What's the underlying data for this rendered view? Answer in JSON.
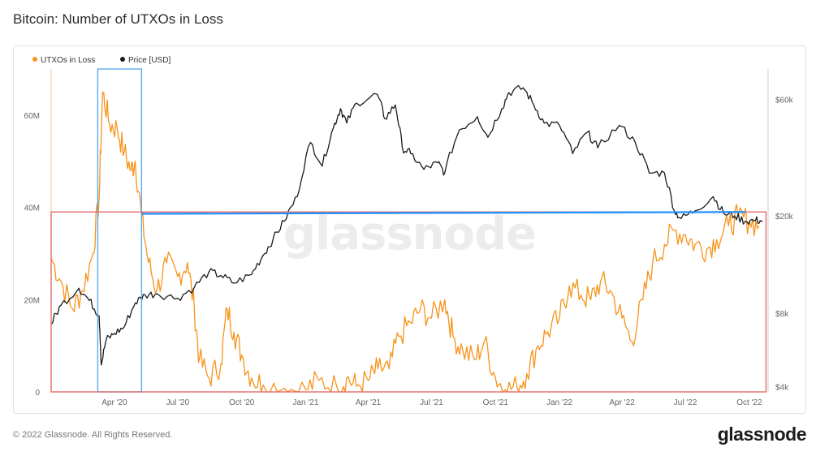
{
  "title": "Bitcoin: Number of UTXOs in Loss",
  "footer": "© 2022 Glassnode. All Rights Reserved.",
  "brand": "glassnode",
  "watermark": "glassnode",
  "colors": {
    "utxo": "#f7931a",
    "price": "#1a1a1a",
    "highlight_box": "#5aaaf0",
    "red_box": "#e36b6b",
    "trend_line": "#1e90ff"
  },
  "chart_data": {
    "type": "line",
    "legend": {
      "placement": "top-left",
      "entries": [
        "UTXOs in Loss",
        "Price [USD]"
      ]
    },
    "x_ticks": [
      "Apr '20",
      "Jul '20",
      "Oct '20",
      "Jan '21",
      "Apr '21",
      "Jul '21",
      "Oct '21",
      "Jan '22",
      "Apr '22",
      "Jul '22",
      "Oct '22"
    ],
    "left_axis": {
      "ticks": [
        "0",
        "20M",
        "40M",
        "60M"
      ],
      "tick_values": [
        0,
        20000000,
        40000000,
        60000000
      ],
      "range": [
        0,
        70000000
      ]
    },
    "right_axis": {
      "scale": "log",
      "ticks": [
        "$4k",
        "$8k",
        "$20k",
        "$60k"
      ],
      "tick_values": [
        4000,
        8000,
        20000,
        60000
      ],
      "range": [
        3800,
        80000
      ]
    },
    "series": [
      {
        "name": "UTXOs in Loss",
        "axis": "left",
        "points": [
          [
            "2020-01-01",
            29000000
          ],
          [
            "2020-01-15",
            24000000
          ],
          [
            "2020-02-01",
            18000000
          ],
          [
            "2020-02-15",
            22000000
          ],
          [
            "2020-03-01",
            30000000
          ],
          [
            "2020-03-10",
            42000000
          ],
          [
            "2020-03-15",
            65000000
          ],
          [
            "2020-03-25",
            58000000
          ],
          [
            "2020-04-05",
            57000000
          ],
          [
            "2020-04-15",
            52000000
          ],
          [
            "2020-04-25",
            48000000
          ],
          [
            "2020-05-01",
            50000000
          ],
          [
            "2020-05-10",
            38000000
          ],
          [
            "2020-05-20",
            28000000
          ],
          [
            "2020-06-01",
            22000000
          ],
          [
            "2020-06-15",
            28000000
          ],
          [
            "2020-07-01",
            25000000
          ],
          [
            "2020-07-15",
            28000000
          ],
          [
            "2020-07-25",
            18000000
          ],
          [
            "2020-08-01",
            7000000
          ],
          [
            "2020-08-15",
            3000000
          ],
          [
            "2020-09-01",
            6000000
          ],
          [
            "2020-09-10",
            18000000
          ],
          [
            "2020-09-20",
            13000000
          ],
          [
            "2020-10-01",
            8000000
          ],
          [
            "2020-10-15",
            3000000
          ],
          [
            "2020-11-01",
            1500000
          ],
          [
            "2020-12-01",
            800000
          ],
          [
            "2021-01-01",
            500000
          ],
          [
            "2021-01-20",
            2500000
          ],
          [
            "2021-02-15",
            1000000
          ],
          [
            "2021-03-01",
            3000000
          ],
          [
            "2021-03-15",
            1200000
          ],
          [
            "2021-04-01",
            2500000
          ],
          [
            "2021-04-15",
            5000000
          ],
          [
            "2021-05-01",
            5000000
          ],
          [
            "2021-05-15",
            12000000
          ],
          [
            "2021-06-01",
            15000000
          ],
          [
            "2021-06-15",
            18000000
          ],
          [
            "2021-07-01",
            16000000
          ],
          [
            "2021-07-20",
            20000000
          ],
          [
            "2021-08-01",
            12000000
          ],
          [
            "2021-08-15",
            9000000
          ],
          [
            "2021-09-01",
            7000000
          ],
          [
            "2021-09-15",
            11000000
          ],
          [
            "2021-10-01",
            3000000
          ],
          [
            "2021-10-15",
            500000
          ],
          [
            "2021-11-01",
            1000000
          ],
          [
            "2021-11-15",
            4000000
          ],
          [
            "2021-12-01",
            10000000
          ],
          [
            "2021-12-15",
            13000000
          ],
          [
            "2022-01-01",
            16000000
          ],
          [
            "2022-01-15",
            23000000
          ],
          [
            "2022-02-01",
            21000000
          ],
          [
            "2022-02-15",
            20000000
          ],
          [
            "2022-03-01",
            24000000
          ],
          [
            "2022-03-15",
            22000000
          ],
          [
            "2022-04-01",
            16000000
          ],
          [
            "2022-04-15",
            11000000
          ],
          [
            "2022-05-01",
            20000000
          ],
          [
            "2022-05-15",
            28000000
          ],
          [
            "2022-06-01",
            32000000
          ],
          [
            "2022-06-15",
            35000000
          ],
          [
            "2022-07-01",
            34000000
          ],
          [
            "2022-07-15",
            32000000
          ],
          [
            "2022-08-01",
            31000000
          ],
          [
            "2022-08-15",
            33000000
          ],
          [
            "2022-09-01",
            36000000
          ],
          [
            "2022-09-15",
            38000000
          ],
          [
            "2022-10-01",
            37000000
          ],
          [
            "2022-10-15",
            36000000
          ]
        ]
      },
      {
        "name": "Price [USD]",
        "axis": "right",
        "points": [
          [
            "2020-01-01",
            7200
          ],
          [
            "2020-01-15",
            8600
          ],
          [
            "2020-02-10",
            10100
          ],
          [
            "2020-02-25",
            9000
          ],
          [
            "2020-03-10",
            7800
          ],
          [
            "2020-03-13",
            4900
          ],
          [
            "2020-03-20",
            6200
          ],
          [
            "2020-04-01",
            6600
          ],
          [
            "2020-04-15",
            7000
          ],
          [
            "2020-05-01",
            8800
          ],
          [
            "2020-05-15",
            9500
          ],
          [
            "2020-06-01",
            9600
          ],
          [
            "2020-07-01",
            9200
          ],
          [
            "2020-07-25",
            10200
          ],
          [
            "2020-08-15",
            11800
          ],
          [
            "2020-09-01",
            11400
          ],
          [
            "2020-09-20",
            10600
          ],
          [
            "2020-10-15",
            11500
          ],
          [
            "2020-11-01",
            13800
          ],
          [
            "2020-11-15",
            16000
          ],
          [
            "2020-12-01",
            19000
          ],
          [
            "2020-12-20",
            24000
          ],
          [
            "2021-01-08",
            40000
          ],
          [
            "2021-01-25",
            32000
          ],
          [
            "2021-02-10",
            46000
          ],
          [
            "2021-02-20",
            55000
          ],
          [
            "2021-03-01",
            48000
          ],
          [
            "2021-03-15",
            58000
          ],
          [
            "2021-04-14",
            63000
          ],
          [
            "2021-04-25",
            50000
          ],
          [
            "2021-05-10",
            57000
          ],
          [
            "2021-05-20",
            38000
          ],
          [
            "2021-06-01",
            36000
          ],
          [
            "2021-06-20",
            31000
          ],
          [
            "2021-07-10",
            33000
          ],
          [
            "2021-07-20",
            30000
          ],
          [
            "2021-08-10",
            45000
          ],
          [
            "2021-09-05",
            51000
          ],
          [
            "2021-09-20",
            42000
          ],
          [
            "2021-10-10",
            55000
          ],
          [
            "2021-10-20",
            64000
          ],
          [
            "2021-11-10",
            67000
          ],
          [
            "2021-11-25",
            57000
          ],
          [
            "2021-12-10",
            48000
          ],
          [
            "2022-01-01",
            47000
          ],
          [
            "2022-01-20",
            36000
          ],
          [
            "2022-02-10",
            44000
          ],
          [
            "2022-02-25",
            38000
          ],
          [
            "2022-03-28",
            47000
          ],
          [
            "2022-04-20",
            40000
          ],
          [
            "2022-05-10",
            30000
          ],
          [
            "2022-06-01",
            30000
          ],
          [
            "2022-06-15",
            21000
          ],
          [
            "2022-06-25",
            19500
          ],
          [
            "2022-07-15",
            21000
          ],
          [
            "2022-08-10",
            24000
          ],
          [
            "2022-08-25",
            20500
          ],
          [
            "2022-09-10",
            20000
          ],
          [
            "2022-09-25",
            19000
          ],
          [
            "2022-10-10",
            19200
          ],
          [
            "2022-10-20",
            19100
          ]
        ]
      }
    ],
    "annotations": [
      {
        "type": "box",
        "color": "blue",
        "x_range": [
          "2020-03-08",
          "2020-05-10"
        ],
        "y_range": [
          0,
          70000000
        ]
      },
      {
        "type": "box",
        "color": "red",
        "x_range": [
          "2020-01-01",
          "2022-10-25"
        ],
        "y_range": [
          0,
          39000000
        ]
      },
      {
        "type": "line",
        "color": "blue",
        "from": [
          "2020-05-10",
          38600000
        ],
        "to": [
          "2022-09-25",
          39000000
        ]
      }
    ]
  }
}
